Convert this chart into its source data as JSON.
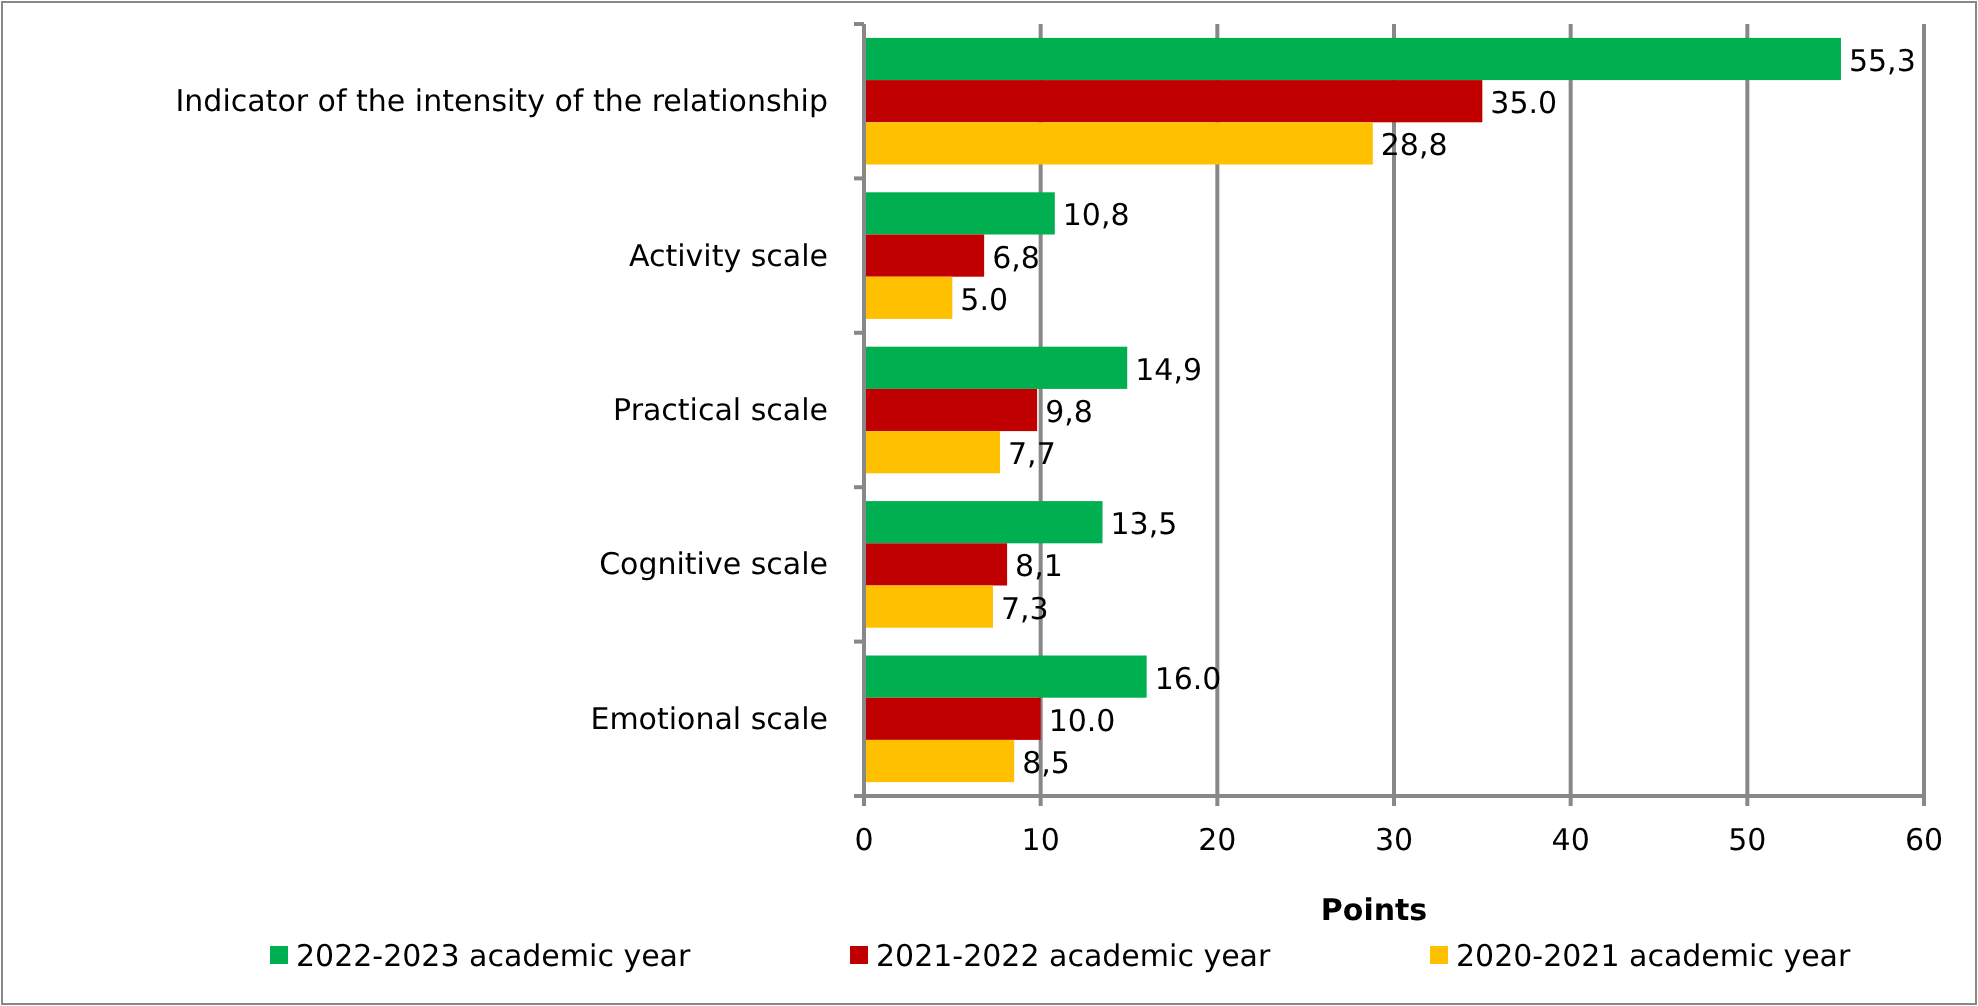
{
  "chart_data": {
    "type": "bar",
    "orientation": "horizontal",
    "xlabel": "Points",
    "categories": [
      "Indicator of the intensity of the relationship",
      "Activity scale",
      "Practical scale",
      "Cognitive scale",
      "Emotional scale"
    ],
    "series": [
      {
        "name": "2022-2023 academic year",
        "color": "#00b050",
        "values": [
          55.3,
          10.8,
          14.9,
          13.5,
          16.0
        ],
        "value_labels": [
          "55,3",
          "10,8",
          "14,9",
          "13,5",
          "16.0"
        ]
      },
      {
        "name": "2021-2022 academic year",
        "color": "#c00000",
        "values": [
          35.0,
          6.8,
          9.8,
          8.1,
          10.0
        ],
        "value_labels": [
          "35.0",
          "6,8",
          "9,8",
          "8,1",
          "10.0"
        ]
      },
      {
        "name": "2020-2021 academic year",
        "color": "#ffc000",
        "values": [
          28.8,
          5.0,
          7.7,
          7.3,
          8.5
        ],
        "value_labels": [
          "28,8",
          "5.0",
          "7,7",
          "7,3",
          "8,5"
        ]
      }
    ],
    "xlim": [
      0,
      60
    ],
    "xticks": [
      0,
      10,
      20,
      30,
      40,
      50,
      60
    ],
    "grid": "x",
    "legend": "bottom"
  }
}
